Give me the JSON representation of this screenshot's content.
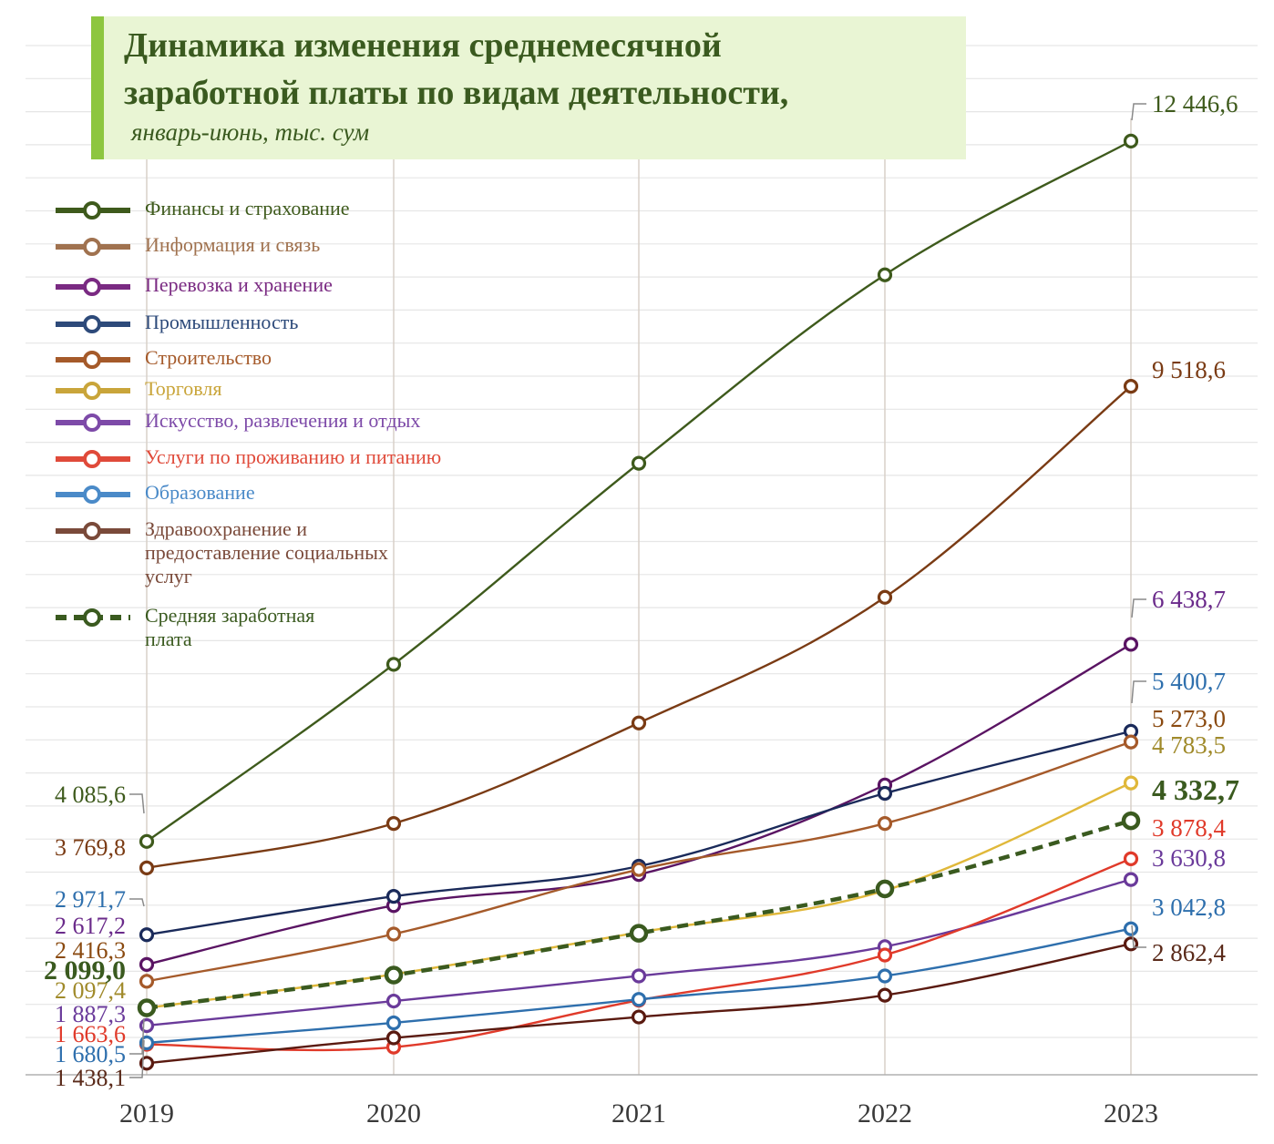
{
  "title": {
    "main": "Динамика изменения среднемесячной\nзаработной платы по видам деятельности,",
    "subtitle": "январь-июнь, тыс. сум"
  },
  "colors": {
    "title_text": "#3a5a1f",
    "title_bg": "#e9f5d4",
    "title_bar": "#8dc63f",
    "grid": "#e6e6e6",
    "drop_line": "#d8d0c8"
  },
  "chart_data": {
    "type": "line",
    "x": [
      "2019",
      "2020",
      "2021",
      "2022",
      "2023"
    ],
    "ylim": [
      1300,
      13500
    ],
    "grid": true,
    "legend_position": "top-left",
    "series": [
      {
        "name": "Финансы и страхование",
        "color": "#3e5a1c",
        "legend_color": "#3e5a1c",
        "label_color": "#3e5a1c",
        "values": [
          4085.6,
          6200,
          8600,
          10850,
          12446.6
        ],
        "start_label": "4 085,6",
        "end_label": "12 446,6"
      },
      {
        "name": "Информация и связь",
        "color": "#7a3b14",
        "legend_color": "#a0724f",
        "label_color": "#7a3b14",
        "values": [
          3769.8,
          4300,
          5500,
          7000,
          9518.6
        ],
        "start_label": "3 769,8",
        "end_label": "9 518,6"
      },
      {
        "name": "Перевозка и хранение",
        "color": "#5a1463",
        "legend_color": "#7a2a82",
        "label_color": "#6a2a8a",
        "values": [
          2617.2,
          3320,
          3690,
          4760,
          6438.7
        ],
        "start_label": "2 617,2",
        "end_label": "6 438,7"
      },
      {
        "name": "Промышленность",
        "color": "#1a2a5a",
        "legend_color": "#2d4a7a",
        "label_color": "#2e6fad",
        "values": [
          2971.7,
          3430,
          3790,
          4660,
          5400.7
        ],
        "start_label": "2 971,7",
        "end_label": "5 400,7"
      },
      {
        "name": "Строительство",
        "color": "#a55a2a",
        "legend_color": "#a55a2a",
        "label_color": "#8a4a10",
        "values": [
          2416.3,
          2980,
          3750,
          4300,
          5273.0
        ],
        "start_label": "2 416,3",
        "end_label": "5 273,0"
      },
      {
        "name": "Торговля",
        "color": "#e0b83a",
        "legend_color": "#c9a53a",
        "label_color": "#a08a2a",
        "values": [
          2097.4,
          2500,
          3000,
          3500,
          4783.5
        ],
        "start_label": "2 097,4",
        "end_label": "4 783,5"
      },
      {
        "name": "Искусство, развлечения и отдых",
        "color": "#6a3a9a",
        "legend_color": "#7d4aa8",
        "label_color": "#6a3a9a",
        "values": [
          1887.3,
          2180,
          2480,
          2830,
          3630.8
        ],
        "start_label": "1 887,3",
        "end_label": "3 630,8"
      },
      {
        "name": "Услуги по проживанию и питанию",
        "color": "#e03a2a",
        "legend_color": "#e04a3a",
        "label_color": "#e03a2a",
        "values": [
          1663.6,
          1630,
          2190,
          2730,
          3878.4
        ],
        "start_label": "1 663,6",
        "end_label": "3 878,4"
      },
      {
        "name": "Образование",
        "color": "#2e6fad",
        "legend_color": "#4a8ac8",
        "label_color": "#2e6fad",
        "values": [
          1680.5,
          1920,
          2200,
          2480,
          3042.8
        ],
        "start_label": "1 680,5",
        "end_label": "3 042,8"
      },
      {
        "name": "Здравоохранение и\nпредоставление социальных\nуслуг",
        "color": "#5a1a10",
        "legend_color": "#7a4a3a",
        "label_color": "#5a2a1a",
        "values": [
          1438.1,
          1740,
          1990,
          2250,
          2862.4
        ],
        "start_label": "1 438,1",
        "end_label": "2 862,4"
      },
      {
        "name": "Средняя заработная\nплата",
        "color": "#3a5a1f",
        "legend_color": "#3a5a1f",
        "label_color": "#3a5a1f",
        "values": [
          2099.0,
          2490,
          2990,
          3520,
          4332.7
        ],
        "start_label": "2 099,0",
        "end_label": "4 332,7",
        "dashed": true,
        "bold": true
      }
    ]
  }
}
